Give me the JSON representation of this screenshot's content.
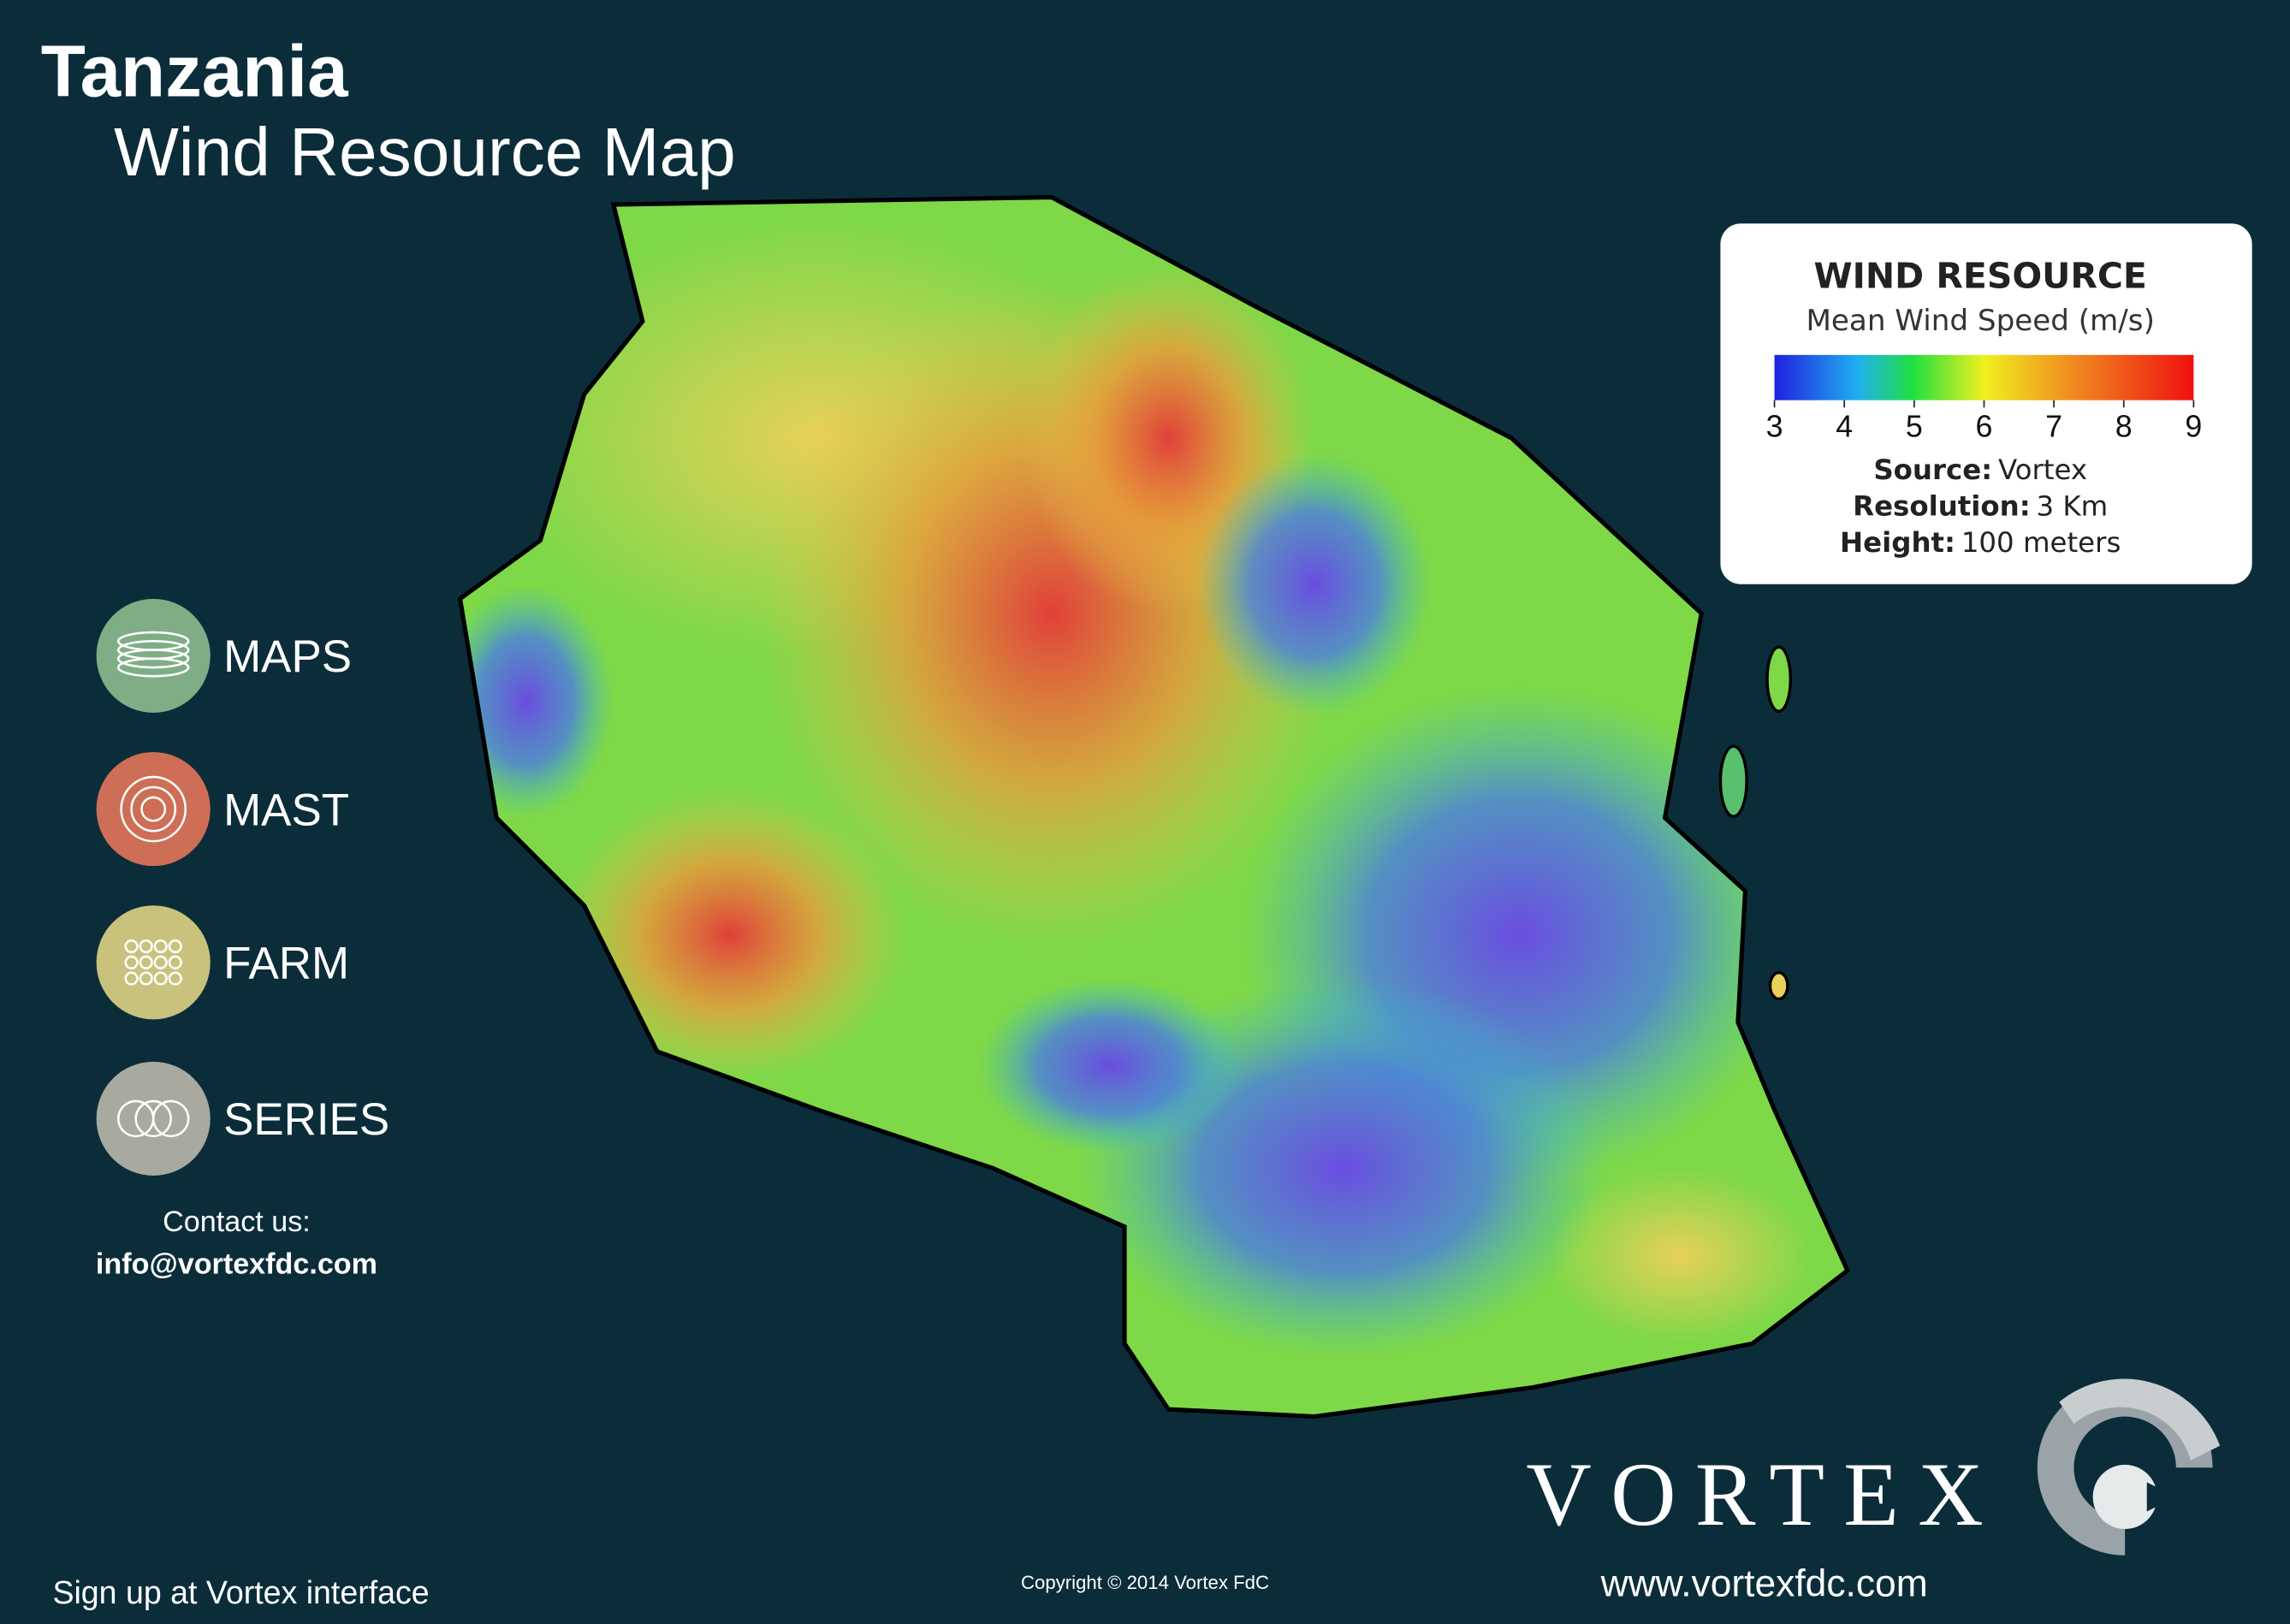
{
  "header": {
    "title": "Tanzania",
    "subtitle": "Wind Resource Map"
  },
  "legend": {
    "title": "WIND RESOURCE",
    "subtitle": "Mean Wind Speed (m/s)",
    "range": [
      3,
      9
    ],
    "ticks": [
      3,
      4,
      5,
      6,
      7,
      8,
      9
    ],
    "details": [
      {
        "label": "Source:",
        "value": "Vortex"
      },
      {
        "label": "Resolution:",
        "value": "3 Km"
      },
      {
        "label": "Height:",
        "value": "100 meters"
      }
    ]
  },
  "menu": [
    "MAPS",
    "MAST",
    "FARM",
    "SERIES"
  ],
  "contact": {
    "label": "Contact us:",
    "email": "info@vortexfdc.com"
  },
  "brand": {
    "name": "VORTEX",
    "url": "www.vortexfdc.com"
  },
  "footer": {
    "signup": "Sign up at Vortex interface",
    "copyright": "Copyright © 2014 Vortex FdC"
  }
}
